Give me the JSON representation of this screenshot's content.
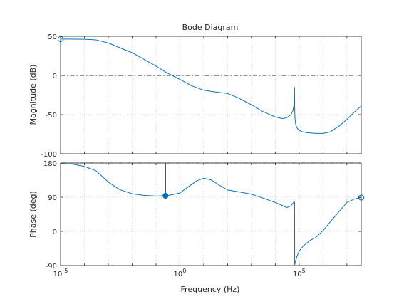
{
  "chart_data": {
    "type": "line",
    "title": "Bode Diagram",
    "xlabel": "Frequency  (Hz)",
    "x_scale": "log",
    "xlim": [
      1e-05,
      40000000.0
    ],
    "x_ticks": [
      {
        "value": 1e-05,
        "base": "10",
        "exp": "-5"
      },
      {
        "value": 1,
        "base": "10",
        "exp": "0"
      },
      {
        "value": 100000,
        "base": "10",
        "exp": "5"
      }
    ],
    "grid": true,
    "line_color": "#0072BD",
    "marker_color": "#0072BD",
    "reference_line_color": "#262626",
    "panels": [
      {
        "name": "magnitude",
        "ylabel": "Magnitude (dB)",
        "ylim": [
          -100,
          50
        ],
        "y_ticks": [
          {
            "value": 50,
            "label": "50"
          },
          {
            "value": 0,
            "label": "0"
          },
          {
            "value": -50,
            "label": "-50"
          },
          {
            "value": -100,
            "label": "-100"
          }
        ],
        "reference_line": {
          "value": 0,
          "style": "dash-dot"
        },
        "series": [
          {
            "x": [
              1e-05,
              2e-05,
              0.0001,
              0.0003,
              0.001,
              0.01,
              0.1,
              0.3,
              1,
              3,
              10,
              30,
              100,
              300,
              1000,
              3000,
              10000,
              20000,
              30000,
              45000,
              55000,
              62000,
              63000,
              63800,
              64400,
              65200,
              67000,
              72000,
              85000,
              120000,
              200000,
              500000,
              1000000,
              2000000,
              5000000,
              10000000,
              20000000,
              40000000
            ],
            "y": [
              46.5,
              46.5,
              46.3,
              45.5,
              41.5,
              29.0,
              12.0,
              3.0,
              -5.0,
              -13.0,
              -18.8,
              -21.0,
              -23.0,
              -29.0,
              -37.5,
              -46.0,
              -53.0,
              -55.0,
              -54.0,
              -50.0,
              -45.0,
              -35.0,
              -27.0,
              -15.0,
              -27.0,
              -43.0,
              -55.0,
              -63.0,
              -68.0,
              -71.5,
              -73.0,
              -74.0,
              -74.0,
              -72.0,
              -64.0,
              -56.0,
              -47.0,
              -39.0
            ]
          }
        ],
        "markers": [
          {
            "x": 1e-05,
            "y": 46.5,
            "filled": false
          }
        ]
      },
      {
        "name": "phase",
        "ylabel": "Phase (deg)",
        "ylim": [
          -90,
          180
        ],
        "y_ticks": [
          {
            "value": 180,
            "label": "180"
          },
          {
            "value": 90,
            "label": "90"
          },
          {
            "value": 0,
            "label": "0"
          },
          {
            "value": -90,
            "label": "-90"
          }
        ],
        "reference_line": {
          "value": 180,
          "style": "dash-dot"
        },
        "series": [
          {
            "x": [
              1e-05,
              3e-05,
              0.0001,
              0.0003,
              0.001,
              0.003,
              0.01,
              0.03,
              0.1,
              0.3,
              1,
              2,
              5,
              10,
              20,
              50,
              100,
              300,
              1000,
              3000,
              10000,
              20000,
              30000,
              45000,
              55000,
              62000,
              63500,
              64200,
              65000,
              68000,
              80000,
              100000,
              150000,
              300000,
              500000,
              1000000,
              2000000,
              5000000,
              10000000,
              20000000,
              40000000
            ],
            "y": [
              178,
              177.5,
              171,
              160,
              130,
              110,
              99,
              95,
              93,
              94,
              101,
              115,
              133,
              140,
              136,
              120,
              109,
              104,
              98,
              88,
              76,
              68,
              63,
              67,
              74,
              79,
              78,
              77,
              -88,
              -82,
              -67,
              -52,
              -38,
              -23,
              -16,
              2,
              25,
              54,
              76,
              85,
              89
            ]
          }
        ],
        "markers": [
          {
            "x": 0.25,
            "y": 93.8,
            "filled": true
          },
          {
            "x": 40000000,
            "y": 89,
            "filled": false
          }
        ],
        "stem": {
          "x": 0.25,
          "from": 93.8,
          "to": 180
        }
      }
    ]
  }
}
